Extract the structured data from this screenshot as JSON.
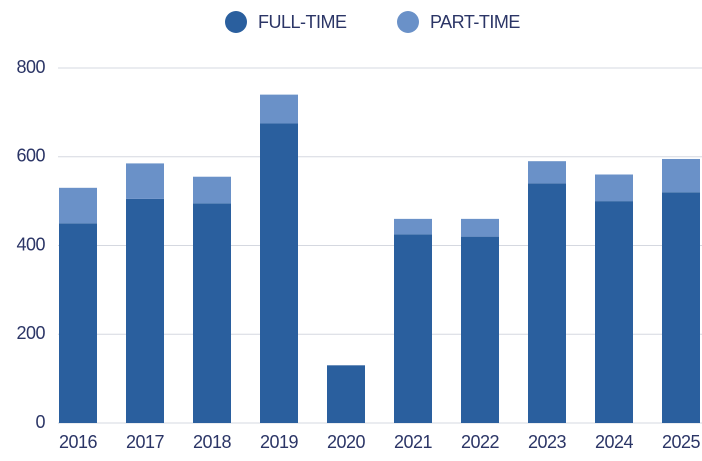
{
  "chart_data": {
    "type": "stacked_bar",
    "categories": [
      "2016",
      "2017",
      "2018",
      "2019",
      "2020",
      "2021",
      "2022",
      "2023",
      "2024",
      "2025"
    ],
    "series": [
      {
        "name": "FULL-TIME",
        "color": "#2a5f9e",
        "values": [
          450,
          505,
          495,
          675,
          130,
          425,
          420,
          540,
          500,
          520
        ]
      },
      {
        "name": "PART-TIME",
        "color": "#6a91c8",
        "values": [
          80,
          80,
          60,
          65,
          0,
          35,
          40,
          50,
          60,
          75
        ]
      }
    ],
    "ylim": [
      0,
      800
    ],
    "yticks": [
      0,
      200,
      400,
      600,
      800
    ],
    "grid": true,
    "legend": "top"
  }
}
